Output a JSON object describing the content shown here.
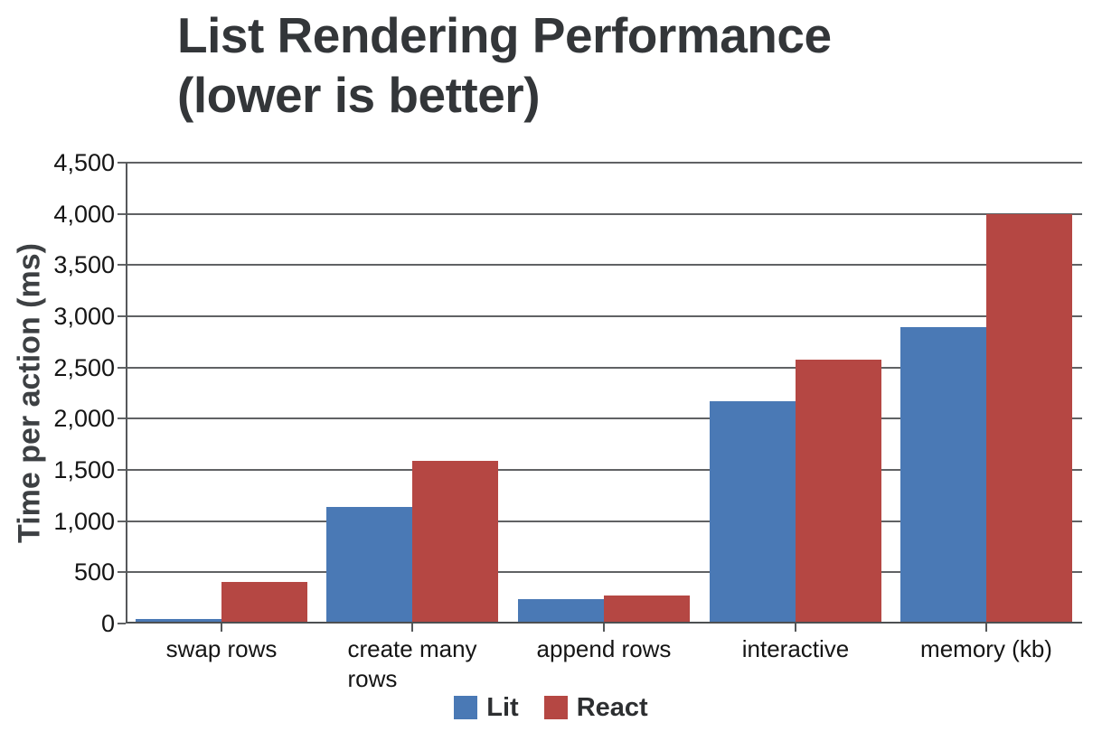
{
  "title": {
    "line1": "List Rendering Performance",
    "line2": "(lower is better)"
  },
  "chart_data": {
    "type": "bar",
    "title": "List Rendering Performance (lower is better)",
    "subtitle": "",
    "xlabel": "",
    "ylabel": "Time per action (ms)",
    "ylim": [
      0,
      4500
    ],
    "ytick_step": 500,
    "ytick_labels": [
      "0",
      "500",
      "1,000",
      "1,500",
      "2,000",
      "2,500",
      "3,000",
      "3,500",
      "4,000",
      "4,500"
    ],
    "grid": true,
    "legend_position": "bottom",
    "categories": [
      "swap rows",
      "create many rows",
      "append rows",
      "interactive",
      "memory (kb)"
    ],
    "category_display_lines": [
      [
        "swap rows"
      ],
      [
        "create many",
        "rows"
      ],
      [
        "append rows"
      ],
      [
        "interactive"
      ],
      [
        "memory (kb)"
      ]
    ],
    "series": [
      {
        "name": "Lit",
        "color": "#4a79b5",
        "values": [
          45,
          1140,
          240,
          2170,
          2890
        ]
      },
      {
        "name": "React",
        "color": "#b54743",
        "values": [
          410,
          1590,
          275,
          2580,
          4000
        ]
      }
    ]
  },
  "colors": {
    "lit_blue": "#4a79b5",
    "react_red": "#b54743",
    "gridline": "#606264",
    "axis": "#4d5052",
    "title_text": "#333639",
    "axis_title_text": "#3d4043",
    "tick_label_text": "#151515",
    "legend_text": "#2d2f31",
    "background": "#ffffff"
  }
}
